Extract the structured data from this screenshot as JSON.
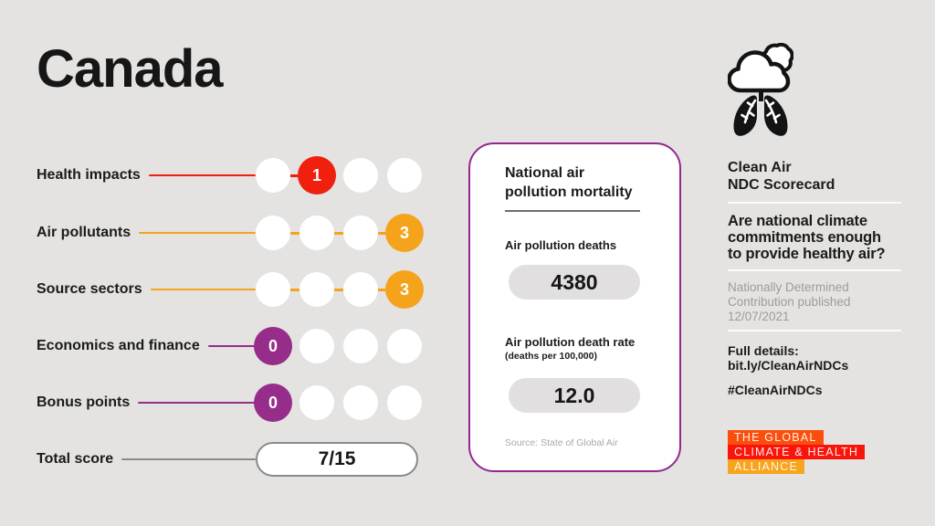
{
  "page": {
    "title": "Canada",
    "background": "#E4E3E1"
  },
  "chart_data": {
    "type": "bar",
    "title": "Canada — Clean Air NDC Scorecard",
    "categories": [
      "Health impacts",
      "Air pollutants",
      "Source sectors",
      "Economics and finance",
      "Bonus points"
    ],
    "values": [
      1,
      3,
      3,
      0,
      0
    ],
    "value_range_per_category": [
      0,
      3
    ],
    "dots_per_row": 4,
    "total_score": "7/15",
    "legend_position": "none",
    "related_stats": {
      "air_pollution_deaths": 4380,
      "air_pollution_death_rate_per_100k": 12.0
    }
  },
  "scorecard": {
    "rows": [
      {
        "label": "Health impacts",
        "score": "1",
        "position": 2,
        "color": "#F0200F"
      },
      {
        "label": "Air pollutants",
        "score": "3",
        "position": 4,
        "color": "#F6A31C"
      },
      {
        "label": "Source sectors",
        "score": "3",
        "position": 4,
        "color": "#F6A31C"
      },
      {
        "label": "Economics and finance",
        "score": "0",
        "position": 1,
        "color": "#962D8A"
      },
      {
        "label": "Bonus points",
        "score": "0",
        "position": 1,
        "color": "#962D8A"
      }
    ],
    "total": {
      "label": "Total score",
      "value": "7/15",
      "line_color": "#8A8A8A"
    }
  },
  "mortality_card": {
    "title": "National air\npollution mortality",
    "deaths_label": "Air pollution deaths",
    "deaths_value": "4380",
    "rate_label": "Air pollution death rate",
    "rate_sublabel": "(deaths per 100,000)",
    "rate_value": "12.0",
    "source": "Source: State of Global Air",
    "border_color": "#93278F"
  },
  "sidebar": {
    "title": "Clean Air\nNDC Scorecard",
    "question": "Are national climate\ncommitments enough\nto provide healthy air?",
    "published": "Nationally Determined\nContribution published\n12/07/2021",
    "details": "Full details:\nbit.ly/CleanAirNDCs",
    "hashtag": "#CleanAirNDCs",
    "logo_lines": [
      {
        "text": "The Global",
        "bg": "#FB4E0C"
      },
      {
        "text": "Climate & Health",
        "bg": "#F9150C"
      },
      {
        "text": "Alliance",
        "bg": "#F8A41C"
      }
    ]
  }
}
